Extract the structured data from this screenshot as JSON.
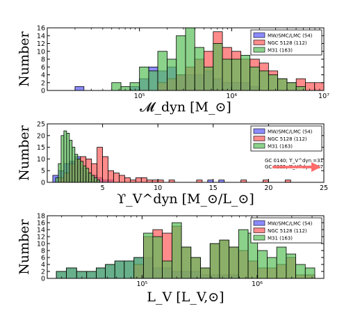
{
  "chart_data": [
    {
      "type": "bar",
      "xscale": "log",
      "xlim": [
        10000,
        10000000
      ],
      "ylim": [
        0,
        16
      ],
      "xlabel": "𝓜_dyn [M_⊙]",
      "ylabel": "Number",
      "x_ticks": [
        {
          "value": 100000,
          "label": "10⁵"
        },
        {
          "value": 1000000,
          "label": "10⁶"
        },
        {
          "value": 10000000,
          "label": "10⁷"
        }
      ],
      "y_ticks": [
        0,
        2,
        4,
        6,
        8,
        10,
        12,
        14,
        16
      ],
      "legend": "top-right",
      "bin_edges": [
        20000,
        25000,
        32000,
        40000,
        50000,
        63000,
        79000,
        100000,
        126000,
        158000,
        200000,
        251000,
        316000,
        398000,
        501000,
        631000,
        794000,
        1000000,
        1260000,
        1580000,
        2000000,
        2510000,
        3160000,
        3980000,
        5010000,
        6310000,
        7940000,
        10000000
      ],
      "series": [
        {
          "name": "MW/SMC/LMC (54)",
          "color": "#5a5aff",
          "values": [
            1,
            0,
            0,
            0,
            0,
            0,
            1,
            3,
            6,
            5,
            6,
            4,
            4,
            4,
            5,
            3,
            2,
            2,
            2,
            1,
            0,
            0,
            0,
            0,
            0,
            0,
            0
          ]
        },
        {
          "name": "NGC 5128 (112)",
          "color": "#ff5a5a",
          "values": [
            0,
            0,
            0,
            0,
            0,
            0,
            0,
            0,
            0,
            2,
            3,
            4,
            6,
            8,
            10,
            15,
            11,
            10,
            8,
            8,
            7,
            5,
            3,
            2,
            3,
            2,
            2
          ]
        },
        {
          "name": "M31 (163)",
          "color": "#5abf5a",
          "values": [
            0,
            0,
            0,
            0,
            2,
            1,
            2,
            6,
            5,
            10,
            8,
            14,
            16,
            11,
            6,
            12,
            8,
            8,
            9,
            6,
            5,
            4,
            3,
            2,
            1,
            0,
            0
          ]
        }
      ]
    },
    {
      "type": "bar",
      "xscale": "linear",
      "xlim": [
        0,
        25
      ],
      "ylim": [
        0,
        25
      ],
      "xlabel": "ϒ_V^dyn [M_⊙/L_⊙]",
      "ylabel": "Number",
      "x_ticks": [
        {
          "value": 5,
          "label": "5"
        },
        {
          "value": 10,
          "label": "10"
        },
        {
          "value": 15,
          "label": "15"
        },
        {
          "value": 20,
          "label": "20"
        },
        {
          "value": 25,
          "label": "25"
        }
      ],
      "y_ticks": [
        0,
        5,
        10,
        15,
        20,
        25
      ],
      "legend": "top-right",
      "annotation_lines": [
        "GC 0140; ϒ_V^dyn =31",
        "GC 0225; ϒ_V^dyn =67"
      ],
      "series": [
        {
          "name": "MW/SMC/LMC (54)",
          "color": "#5a5aff",
          "bin_start": 0,
          "bin_width": 0.5,
          "values": [
            0,
            3,
            5,
            8,
            9,
            11,
            6,
            4,
            3,
            2,
            1,
            1,
            0,
            0,
            0,
            0,
            0,
            0,
            0,
            0,
            0,
            0,
            0,
            0,
            0,
            0,
            0,
            0,
            0,
            1,
            0,
            1
          ]
        },
        {
          "name": "NGC 5128 (112)",
          "color": "#ff5a5a",
          "bin_start": 0,
          "bin_width": 0.5,
          "values": [
            0,
            0,
            2,
            4,
            8,
            10,
            11,
            10,
            8,
            15,
            11,
            5,
            4,
            3,
            2,
            1,
            2,
            2,
            1,
            1,
            1,
            0,
            1,
            0,
            0,
            0,
            0,
            1,
            0,
            0,
            0,
            0,
            0,
            0,
            0,
            1,
            0,
            0,
            0,
            1,
            0,
            0,
            0,
            1
          ]
        },
        {
          "name": "M31 (163)",
          "color": "#5abf5a",
          "bin_start": 0.75,
          "bin_width": 0.25,
          "values": [
            2,
            8,
            20,
            22,
            21,
            18,
            15,
            12,
            10,
            9,
            7,
            6,
            4,
            3,
            2,
            1
          ]
        }
      ]
    },
    {
      "type": "bar",
      "xscale": "log",
      "xlim": [
        15000,
        3800000
      ],
      "ylim": [
        0,
        18
      ],
      "xlabel": "L_V [L_V,⊙]",
      "ylabel": "Number",
      "x_ticks": [
        {
          "value": 100000,
          "label": "10⁵"
        },
        {
          "value": 1000000,
          "label": "10⁶"
        }
      ],
      "y_ticks": [
        0,
        2,
        4,
        6,
        8,
        10,
        12,
        14,
        16,
        18
      ],
      "legend": "top-right",
      "bin_edges": [
        18000,
        22000,
        27000,
        33000,
        40000,
        48000,
        58000,
        70000,
        85000,
        103000,
        124000,
        150000,
        182000,
        220000,
        266000,
        322000,
        390000,
        471000,
        570000,
        690000,
        835000,
        1010000,
        1222000,
        1479000,
        1790000,
        2166000,
        2620000,
        3170000
      ],
      "series": [
        {
          "name": "MW/SMC/LMC (54)",
          "color": "#5a5aff",
          "values": [
            2,
            3,
            2,
            2,
            3,
            4,
            5,
            5,
            6,
            6,
            3,
            3,
            2,
            2,
            2,
            1,
            1,
            1,
            1,
            0,
            0,
            0,
            0,
            0,
            0,
            0,
            0
          ]
        },
        {
          "name": "NGC 5128 (112)",
          "color": "#ff5a5a",
          "values": [
            0,
            0,
            0,
            0,
            0,
            0,
            0,
            0,
            4,
            12,
            14,
            13,
            15,
            9,
            6,
            3,
            10,
            11,
            9,
            8,
            5,
            3,
            3,
            4,
            6,
            1,
            1
          ]
        },
        {
          "name": "M31 (163)",
          "color": "#5abf5a",
          "values": [
            2,
            3,
            2,
            2,
            3,
            4,
            5,
            5,
            6,
            13,
            12,
            5,
            16,
            9,
            6,
            3,
            10,
            11,
            9,
            14,
            13,
            8,
            6,
            9,
            7,
            4,
            3
          ]
        }
      ]
    }
  ]
}
